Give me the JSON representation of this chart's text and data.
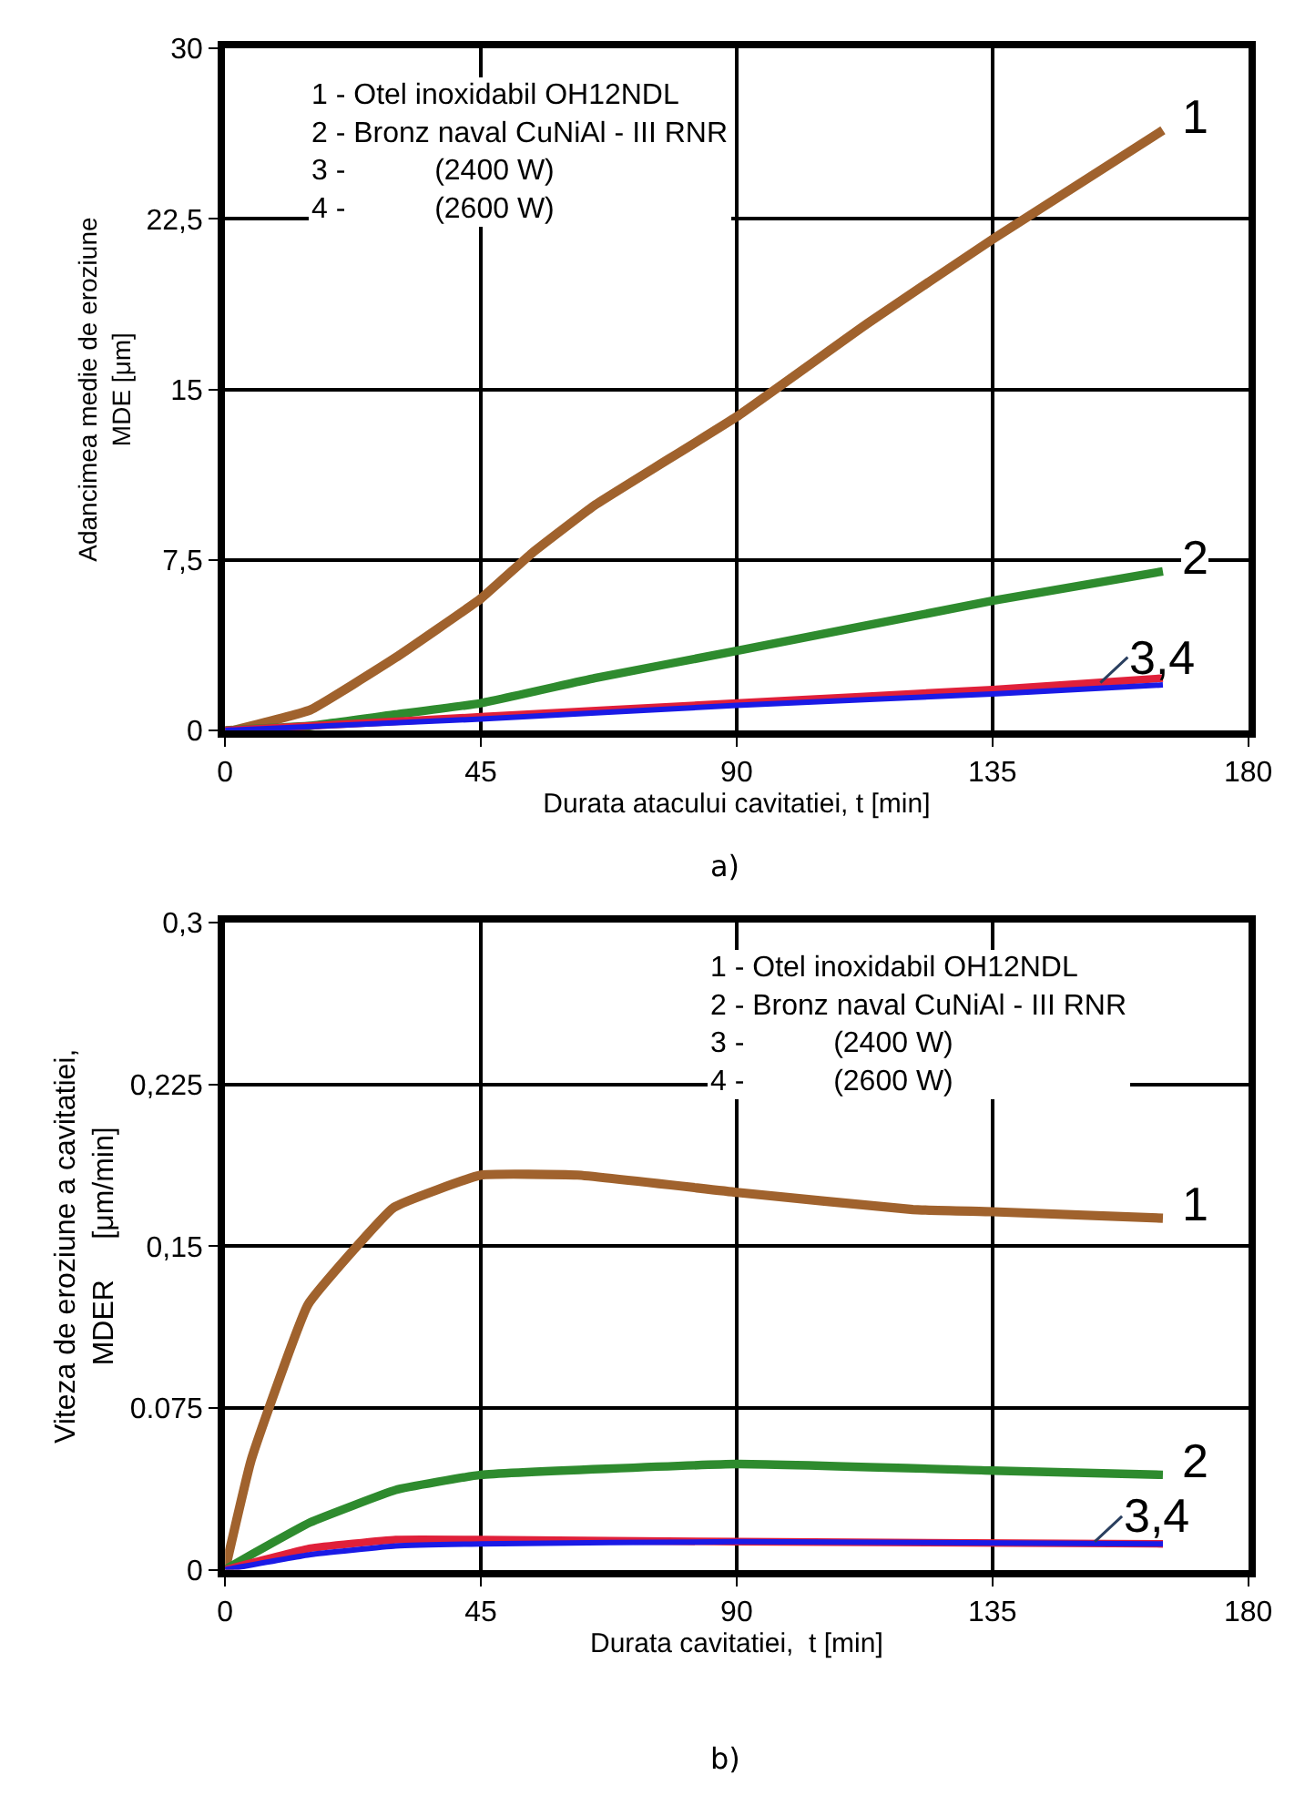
{
  "chart_data": [
    {
      "type": "line",
      "xlabel": "Durata atacului cavitatiei, t [min]",
      "ylabel": "Adancimea medie de eroziune\nMDE [μm]",
      "xlim": [
        0,
        180
      ],
      "xticks": [
        0,
        45,
        90,
        135,
        180
      ],
      "ylim": [
        0,
        30
      ],
      "yticks": [
        0,
        {
          "value": 7.5,
          "label": "7,5"
        },
        15,
        {
          "value": 22.5,
          "label": "22,5"
        },
        30
      ],
      "grid": true,
      "marker": "none",
      "line_style": "solid",
      "series": [
        {
          "color": "#a0622d",
          "x": [
            1.5,
            15,
            30,
            45,
            54,
            65,
            90,
            113,
            135,
            165
          ],
          "values": [
            0,
            0.9,
            3.2,
            5.8,
            7.8,
            9.9,
            13.8,
            17.9,
            21.6,
            26.4
          ]
        },
        {
          "color": "#2e8b2e",
          "x": [
            0,
            15,
            30,
            45,
            65,
            90,
            135,
            165
          ],
          "values": [
            0,
            0.2,
            0.7,
            1.2,
            2.3,
            3.5,
            5.7,
            7.0
          ]
        },
        {
          "color": "#e0203a",
          "x": [
            0,
            45,
            90,
            135,
            165
          ],
          "values": [
            0,
            0.6,
            1.2,
            1.8,
            2.3
          ]
        },
        {
          "color": "#1a1ae6",
          "x": [
            0,
            45,
            90,
            135,
            165
          ],
          "values": [
            0,
            0.5,
            1.1,
            1.6,
            2.0
          ]
        }
      ],
      "annotations": [
        "1 - Otel inoxidabil OH12NDL\n2 - Bronz naval CuNiAl - III RNR\n3 -           (2400 W)\n4 -           (2600 W)",
        {
          "text": "1",
          "x": 165,
          "y": 26.4
        },
        {
          "text": "2",
          "x": 165,
          "y": 7.0
        },
        {
          "text": "3,4",
          "x": 154,
          "y": 2.1
        },
        "a)"
      ]
    },
    {
      "type": "line",
      "xlabel": "Durata cavitatiei,  t [min]",
      "ylabel": "Viteza de eroziune a cavitatiei,\nMDER     [μm/min]",
      "xlim": [
        0,
        180
      ],
      "xticks": [
        0,
        45,
        90,
        135,
        180
      ],
      "ylim": [
        0,
        0.3
      ],
      "yticks": [
        0,
        {
          "value": 0.075,
          "label": "0.075"
        },
        {
          "value": 0.15,
          "label": "0,15"
        },
        {
          "value": 0.225,
          "label": "0,225"
        },
        {
          "value": 0.3,
          "label": "0,3"
        }
      ],
      "grid": true,
      "marker": "none",
      "line_style": "solid",
      "series": [
        {
          "color": "#a0622d",
          "x": [
            0,
            4.6,
            14.6,
            29.7,
            45,
            62,
            90,
            121,
            135,
            165
          ],
          "values": [
            0,
            0.051,
            0.123,
            0.168,
            0.183,
            0.183,
            0.175,
            0.167,
            0.166,
            0.163
          ]
        },
        {
          "color": "#2e8b2e",
          "x": [
            0,
            4.6,
            15,
            30,
            45,
            90,
            135,
            165
          ],
          "values": [
            0,
            0.007,
            0.022,
            0.037,
            0.044,
            0.049,
            0.046,
            0.044
          ]
        },
        {
          "color": "#e0203a",
          "x": [
            0,
            15,
            30,
            45,
            90,
            165
          ],
          "values": [
            0,
            0.01,
            0.014,
            0.014,
            0.013,
            0.012
          ]
        },
        {
          "color": "#1a1ae6",
          "x": [
            0,
            15,
            30,
            45,
            90,
            165
          ],
          "values": [
            0,
            0.007,
            0.011,
            0.012,
            0.013,
            0.012
          ]
        }
      ],
      "annotations": [
        "1 - Otel inoxidabil OH12NDL\n2 - Bronz naval CuNiAl - III RNR\n3 -           (2400 W)\n4 -           (2600 W)",
        {
          "text": "1",
          "x": 165,
          "y": 0.163
        },
        {
          "text": "2",
          "x": 165,
          "y": 0.044
        },
        {
          "text": "3,4",
          "x": 153,
          "y": 0.013
        },
        "b)"
      ]
    }
  ]
}
